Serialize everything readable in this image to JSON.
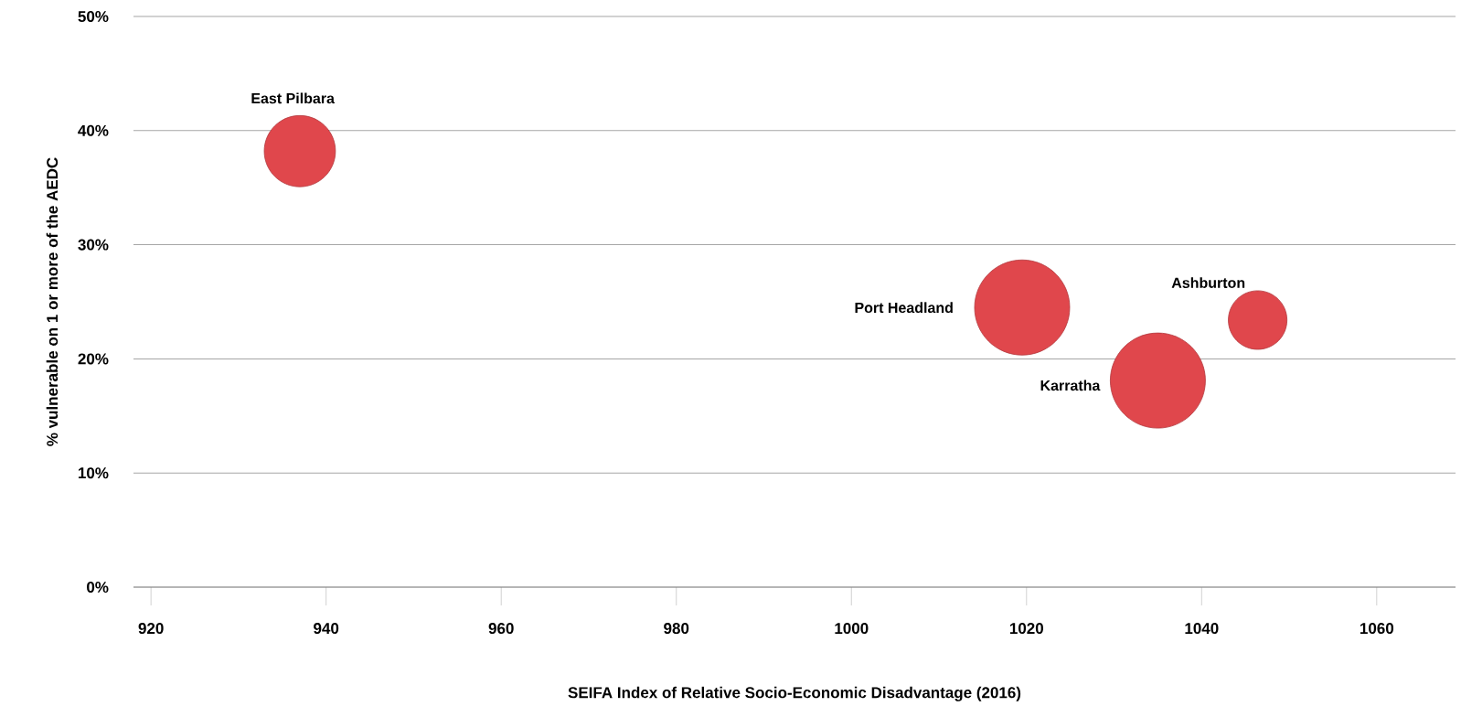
{
  "chart_data": {
    "type": "bubble",
    "xlabel": "SEIFA Index of Relative Socio-Economic Disadvantage (2016)",
    "ylabel": "% vulnerable on 1 or more of the AEDC",
    "x": [
      937.0,
      1019.5,
      1035.0,
      1046.4
    ],
    "values": [
      38.2,
      24.5,
      18.1,
      23.4
    ],
    "sizes": [
      0.56,
      1,
      1,
      0.38
    ],
    "color": "#e0474c",
    "xlim": [
      918,
      1069
    ],
    "xticks": [
      920,
      940,
      960,
      980,
      1000,
      1020,
      1040,
      1060
    ],
    "ylim": [
      0,
      50
    ],
    "yticks": [
      {
        "value": 0,
        "label": "0%"
      },
      {
        "value": 10,
        "label": "10%"
      },
      {
        "value": 20,
        "label": "20%"
      },
      {
        "value": 30,
        "label": "30%"
      },
      {
        "value": 40,
        "label": "40%"
      },
      {
        "value": 50,
        "label": "50%"
      }
    ],
    "grid": "y",
    "annotations": [
      "East Pilbara",
      "Port Headland",
      "Karratha",
      "Ashburton"
    ]
  }
}
